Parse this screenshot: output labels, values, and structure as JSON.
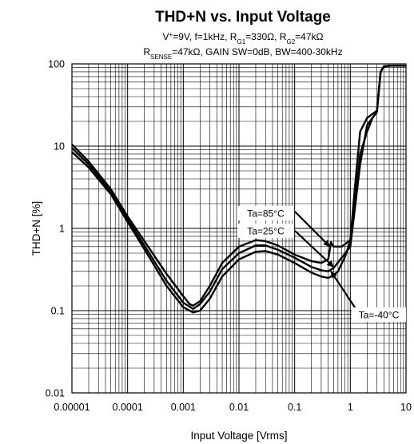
{
  "chart_data": {
    "type": "line",
    "title": "THD+N vs. Input Voltage",
    "subtitle": {
      "line1": {
        "pre": "V",
        "sup": "+",
        "mid1": "=9V, f=1kHz, R",
        "sub1": "G1",
        "mid2": "=330Ω, R",
        "sub2": "G2",
        "post": "=47kΩ"
      },
      "line2": {
        "pre": "R",
        "sub1": "SENSE",
        "post": "=47kΩ, GAIN SW=0dB, BW=400-30kHz"
      }
    },
    "xlabel": "Input Voltage [Vrms]",
    "ylabel": "THD+N [%]",
    "x_scale": "log",
    "y_scale": "log",
    "xlim": [
      1e-05,
      10
    ],
    "ylim": [
      0.01,
      100
    ],
    "grid": true,
    "x_ticks": [
      {
        "value": 1e-05,
        "label": "0.00001"
      },
      {
        "value": 0.0001,
        "label": "0.0001"
      },
      {
        "value": 0.001,
        "label": "0.001"
      },
      {
        "value": 0.01,
        "label": "0.01"
      },
      {
        "value": 0.1,
        "label": "0.1"
      },
      {
        "value": 1,
        "label": "1"
      },
      {
        "value": 10,
        "label": "10"
      }
    ],
    "y_ticks": [
      {
        "value": 0.01,
        "label": "0.01"
      },
      {
        "value": 0.1,
        "label": "0.1"
      },
      {
        "value": 1,
        "label": "1"
      },
      {
        "value": 10,
        "label": "10"
      },
      {
        "value": 100,
        "label": "100"
      }
    ],
    "series": [
      {
        "name": "Ta=85°C",
        "x": [
          1e-05,
          2e-05,
          5e-05,
          0.0001,
          0.0002,
          0.0005,
          0.001,
          0.0013,
          0.0015,
          0.002,
          0.003,
          0.005,
          0.01,
          0.02,
          0.03,
          0.05,
          0.1,
          0.2,
          0.3,
          0.4,
          0.45,
          0.5,
          0.7,
          1.0,
          1.2,
          1.5,
          2.0,
          3.0,
          3.5,
          4.0,
          5.0,
          10
        ],
        "y": [
          10.5,
          6.5,
          3.0,
          1.4,
          0.7,
          0.28,
          0.15,
          0.12,
          0.115,
          0.13,
          0.2,
          0.38,
          0.6,
          0.72,
          0.7,
          0.62,
          0.48,
          0.4,
          0.38,
          0.42,
          0.68,
          0.6,
          0.6,
          0.72,
          3,
          15,
          22,
          27,
          80,
          93,
          95,
          95
        ]
      },
      {
        "name": "Ta=25°C",
        "x": [
          1e-05,
          2e-05,
          5e-05,
          0.0001,
          0.0002,
          0.0005,
          0.001,
          0.0015,
          0.002,
          0.003,
          0.005,
          0.01,
          0.02,
          0.03,
          0.05,
          0.1,
          0.2,
          0.3,
          0.4,
          0.5,
          0.7,
          1.0,
          1.5,
          2.0,
          3.0,
          3.5,
          4.0,
          5.0,
          10
        ],
        "y": [
          9.5,
          6.0,
          2.8,
          1.3,
          0.62,
          0.23,
          0.125,
          0.105,
          0.12,
          0.17,
          0.32,
          0.5,
          0.62,
          0.62,
          0.55,
          0.44,
          0.34,
          0.31,
          0.3,
          0.33,
          0.44,
          0.6,
          6,
          18,
          26,
          80,
          93,
          95,
          95
        ]
      },
      {
        "name": "Ta=-40°C",
        "x": [
          1e-05,
          2e-05,
          5e-05,
          0.0001,
          0.0002,
          0.0005,
          0.001,
          0.0015,
          0.002,
          0.003,
          0.005,
          0.01,
          0.02,
          0.03,
          0.05,
          0.1,
          0.2,
          0.3,
          0.4,
          0.5,
          0.6,
          0.8,
          1.0,
          1.2,
          1.5,
          2.0,
          2.5,
          3.0,
          3.5,
          4.0,
          5.0,
          10
        ],
        "y": [
          8.5,
          5.5,
          2.6,
          1.2,
          0.56,
          0.2,
          0.11,
          0.095,
          0.1,
          0.14,
          0.26,
          0.42,
          0.52,
          0.53,
          0.48,
          0.38,
          0.29,
          0.26,
          0.25,
          0.27,
          0.3,
          0.45,
          0.7,
          1.8,
          8,
          15,
          22,
          26,
          80,
          93,
          95,
          95
        ]
      }
    ],
    "annotations": [
      {
        "text": "Ta=85°C",
        "target_x": 0.43,
        "target_y": 0.6
      },
      {
        "text": "Ta=25°C",
        "target_x": 0.5,
        "target_y": 0.34
      },
      {
        "text": "Ta=-40°C",
        "target_x": 0.45,
        "target_y": 0.3
      }
    ],
    "colors": {
      "line": "#000000",
      "grid": "#000000",
      "background": "#ffffff"
    }
  }
}
